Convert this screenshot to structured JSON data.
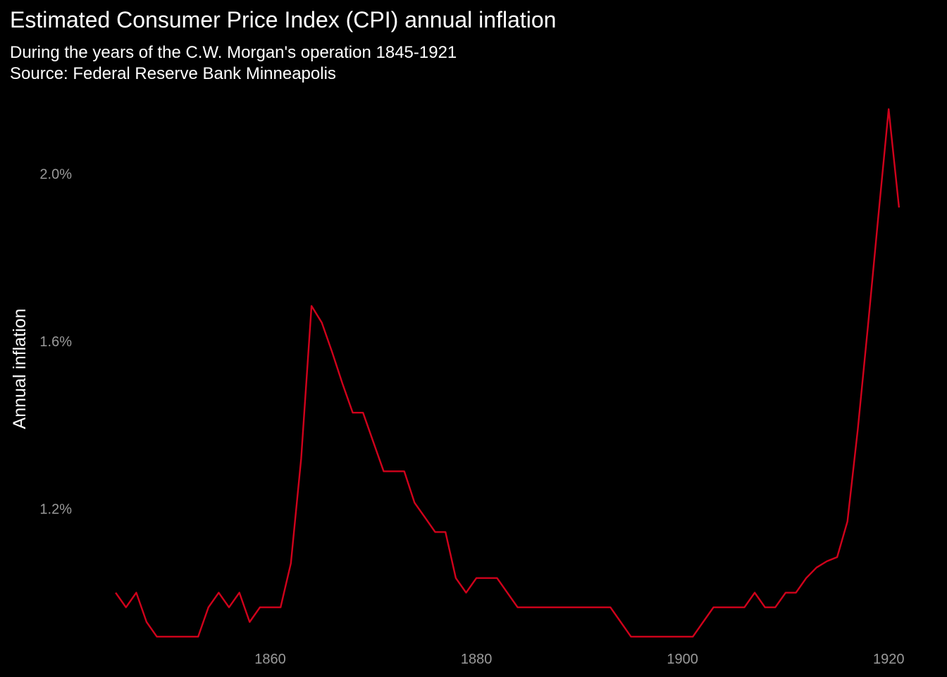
{
  "chart_data": {
    "type": "line",
    "title": "Estimated Consumer Price Index (CPI) annual inflation",
    "subtitle_lines": [
      "During the years of the C.W. Morgan's operation 1845-1921",
      "Source: Federal Reserve Bank Minneapolis"
    ],
    "xlabel": "",
    "ylabel": "Annual inflation",
    "xlim": [
      1841.3,
      1924.7
    ],
    "ylim": [
      0.866,
      2.2
    ],
    "x_ticks": [
      1860,
      1880,
      1900,
      1920
    ],
    "x_tick_labels": [
      "1860",
      "1880",
      "1900",
      "1920"
    ],
    "y_ticks": [
      1.2,
      1.6,
      2.0
    ],
    "y_tick_labels": [
      "1.2%",
      "1.6%",
      "2.0%"
    ],
    "grid": false,
    "legend": "none",
    "line_color": "#d0021b",
    "background": "#000000",
    "text_color": "#ffffff",
    "tick_color": "#9a9a9a",
    "series": [
      {
        "x": [
          1845,
          1846,
          1847,
          1848,
          1849,
          1850,
          1851,
          1852,
          1853,
          1854,
          1855,
          1856,
          1857,
          1858,
          1859,
          1860,
          1861,
          1862,
          1863,
          1864,
          1865,
          1866,
          1867,
          1868,
          1869,
          1870,
          1871,
          1872,
          1873,
          1874,
          1875,
          1876,
          1877,
          1878,
          1879,
          1880,
          1881,
          1882,
          1883,
          1884,
          1885,
          1886,
          1887,
          1888,
          1889,
          1890,
          1891,
          1892,
          1893,
          1894,
          1895,
          1896,
          1897,
          1898,
          1899,
          1900,
          1901,
          1902,
          1903,
          1904,
          1905,
          1906,
          1907,
          1908,
          1909,
          1910,
          1911,
          1912,
          1913,
          1914,
          1915,
          1916,
          1917,
          1918,
          1919,
          1920,
          1921
        ],
        "values": [
          1.0,
          0.965,
          1.0,
          0.93,
          0.895,
          0.895,
          0.895,
          0.895,
          0.895,
          0.965,
          1.0,
          0.965,
          1.0,
          0.93,
          0.965,
          0.965,
          0.965,
          1.07,
          1.32,
          1.685,
          1.645,
          1.575,
          1.5,
          1.43,
          1.43,
          1.36,
          1.29,
          1.29,
          1.29,
          1.215,
          1.18,
          1.145,
          1.145,
          1.035,
          1.0,
          1.035,
          1.035,
          1.035,
          1.0,
          0.965,
          0.965,
          0.965,
          0.965,
          0.965,
          0.965,
          0.965,
          0.965,
          0.965,
          0.965,
          0.93,
          0.895,
          0.895,
          0.895,
          0.895,
          0.895,
          0.895,
          0.895,
          0.93,
          0.965,
          0.965,
          0.965,
          0.965,
          1.0,
          0.965,
          0.965,
          1.0,
          1.0,
          1.035,
          1.06,
          1.075,
          1.085,
          1.17,
          1.39,
          1.64,
          1.9,
          2.155,
          1.92
        ]
      }
    ]
  }
}
